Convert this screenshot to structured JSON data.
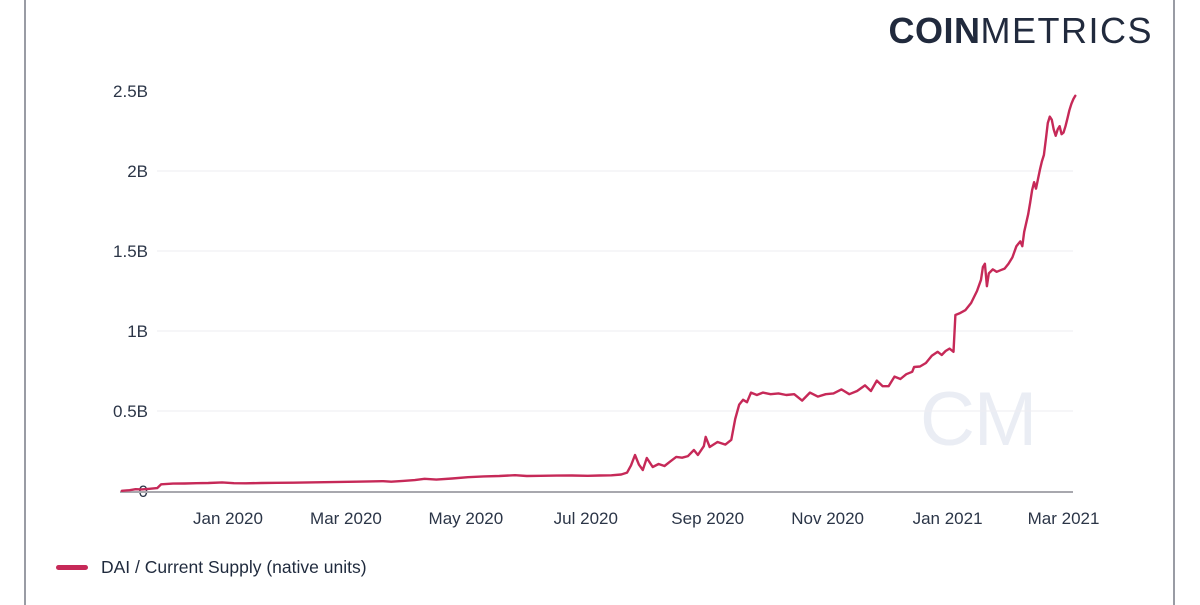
{
  "brand": {
    "logo_bold": "COIN",
    "logo_light": "METRICS",
    "watermark": "CM",
    "logo_color": "#212a3d",
    "watermark_color": "#eaedf4"
  },
  "legend": {
    "label": "DAI / Current Supply (native units)",
    "swatch_color": "#c62958"
  },
  "chart_data": {
    "type": "line",
    "title": "",
    "xlabel": "",
    "ylabel": "",
    "line_color": "#c62958",
    "grid_color": "#ededf2",
    "axis_color": "#a8a8ae",
    "tick_label_color": "#2b3547",
    "grid": "horizontal",
    "legend_position": "bottom-left",
    "ylim": [
      0,
      2.6
    ],
    "y_ticks": [
      {
        "value": 0,
        "label": "0",
        "gridline": false
      },
      {
        "value": 0.5,
        "label": "0.5B",
        "gridline": true
      },
      {
        "value": 1,
        "label": "1B",
        "gridline": true
      },
      {
        "value": 1.5,
        "label": "1.5B",
        "gridline": true
      },
      {
        "value": 2,
        "label": "2B",
        "gridline": true
      },
      {
        "value": 2.5,
        "label": "2.5B",
        "gridline": false
      }
    ],
    "x_ticks": [
      {
        "date": "2020-01-01",
        "label": "Jan 2020"
      },
      {
        "date": "2020-03-01",
        "label": "Mar 2020"
      },
      {
        "date": "2020-05-01",
        "label": "May 2020"
      },
      {
        "date": "2020-07-01",
        "label": "Jul 2020"
      },
      {
        "date": "2020-09-01",
        "label": "Sep 2020"
      },
      {
        "date": "2020-11-01",
        "label": "Nov 2020"
      },
      {
        "date": "2021-01-01",
        "label": "Jan 2021"
      },
      {
        "date": "2021-03-01",
        "label": "Mar 2021"
      }
    ],
    "series": [
      {
        "name": "DAI / Current Supply (native units)",
        "unit": "billions of native units",
        "points": [
          [
            "2019-11-08",
            0.001
          ],
          [
            "2019-11-12",
            0.005
          ],
          [
            "2019-11-15",
            0.011
          ],
          [
            "2019-11-18",
            0.01
          ],
          [
            "2019-11-22",
            0.014
          ],
          [
            "2019-11-26",
            0.018
          ],
          [
            "2019-11-28",
            0.042
          ],
          [
            "2019-12-04",
            0.046
          ],
          [
            "2019-12-10",
            0.047
          ],
          [
            "2019-12-16",
            0.049
          ],
          [
            "2019-12-22",
            0.05
          ],
          [
            "2019-12-29",
            0.054
          ],
          [
            "2020-01-04",
            0.049
          ],
          [
            "2020-01-10",
            0.048
          ],
          [
            "2020-01-18",
            0.05
          ],
          [
            "2020-01-26",
            0.051
          ],
          [
            "2020-02-03",
            0.052
          ],
          [
            "2020-02-11",
            0.054
          ],
          [
            "2020-02-19",
            0.055
          ],
          [
            "2020-02-27",
            0.057
          ],
          [
            "2020-03-06",
            0.058
          ],
          [
            "2020-03-13",
            0.06
          ],
          [
            "2020-03-20",
            0.061
          ],
          [
            "2020-03-24",
            0.058
          ],
          [
            "2020-03-30",
            0.063
          ],
          [
            "2020-04-05",
            0.068
          ],
          [
            "2020-04-10",
            0.076
          ],
          [
            "2020-04-16",
            0.071
          ],
          [
            "2020-04-24",
            0.078
          ],
          [
            "2020-05-02",
            0.086
          ],
          [
            "2020-05-10",
            0.091
          ],
          [
            "2020-05-18",
            0.094
          ],
          [
            "2020-05-26",
            0.099
          ],
          [
            "2020-06-01",
            0.094
          ],
          [
            "2020-06-08",
            0.095
          ],
          [
            "2020-06-16",
            0.096
          ],
          [
            "2020-06-24",
            0.097
          ],
          [
            "2020-07-02",
            0.095
          ],
          [
            "2020-07-08",
            0.097
          ],
          [
            "2020-07-14",
            0.098
          ],
          [
            "2020-07-19",
            0.103
          ],
          [
            "2020-07-22",
            0.115
          ],
          [
            "2020-07-24",
            0.16
          ],
          [
            "2020-07-26",
            0.225
          ],
          [
            "2020-07-28",
            0.165
          ],
          [
            "2020-07-30",
            0.131
          ],
          [
            "2020-08-01",
            0.206
          ],
          [
            "2020-08-04",
            0.15
          ],
          [
            "2020-08-07",
            0.169
          ],
          [
            "2020-08-10",
            0.156
          ],
          [
            "2020-08-13",
            0.185
          ],
          [
            "2020-08-16",
            0.213
          ],
          [
            "2020-08-19",
            0.208
          ],
          [
            "2020-08-22",
            0.218
          ],
          [
            "2020-08-25",
            0.256
          ],
          [
            "2020-08-27",
            0.225
          ],
          [
            "2020-08-30",
            0.28
          ],
          [
            "2020-08-31",
            0.338
          ],
          [
            "2020-09-02",
            0.275
          ],
          [
            "2020-09-06",
            0.306
          ],
          [
            "2020-09-10",
            0.29
          ],
          [
            "2020-09-13",
            0.32
          ],
          [
            "2020-09-15",
            0.45
          ],
          [
            "2020-09-17",
            0.54
          ],
          [
            "2020-09-19",
            0.57
          ],
          [
            "2020-09-21",
            0.555
          ],
          [
            "2020-09-23",
            0.615
          ],
          [
            "2020-09-26",
            0.6
          ],
          [
            "2020-09-29",
            0.615
          ],
          [
            "2020-10-03",
            0.605
          ],
          [
            "2020-10-07",
            0.61
          ],
          [
            "2020-10-11",
            0.6
          ],
          [
            "2020-10-15",
            0.605
          ],
          [
            "2020-10-19",
            0.565
          ],
          [
            "2020-10-23",
            0.615
          ],
          [
            "2020-10-27",
            0.59
          ],
          [
            "2020-10-31",
            0.605
          ],
          [
            "2020-11-04",
            0.61
          ],
          [
            "2020-11-08",
            0.635
          ],
          [
            "2020-11-12",
            0.605
          ],
          [
            "2020-11-16",
            0.625
          ],
          [
            "2020-11-20",
            0.66
          ],
          [
            "2020-11-23",
            0.625
          ],
          [
            "2020-11-26",
            0.69
          ],
          [
            "2020-11-29",
            0.655
          ],
          [
            "2020-12-02",
            0.655
          ],
          [
            "2020-12-05",
            0.715
          ],
          [
            "2020-12-08",
            0.7
          ],
          [
            "2020-12-11",
            0.73
          ],
          [
            "2020-12-14",
            0.745
          ],
          [
            "2020-12-15",
            0.775
          ],
          [
            "2020-12-18",
            0.778
          ],
          [
            "2020-12-21",
            0.8
          ],
          [
            "2020-12-24",
            0.845
          ],
          [
            "2020-12-27",
            0.87
          ],
          [
            "2020-12-29",
            0.85
          ],
          [
            "2020-12-31",
            0.875
          ],
          [
            "2021-01-02",
            0.89
          ],
          [
            "2021-01-04",
            0.87
          ],
          [
            "2021-01-05",
            1.1
          ],
          [
            "2021-01-07",
            1.11
          ],
          [
            "2021-01-10",
            1.13
          ],
          [
            "2021-01-13",
            1.175
          ],
          [
            "2021-01-16",
            1.25
          ],
          [
            "2021-01-18",
            1.32
          ],
          [
            "2021-01-19",
            1.4
          ],
          [
            "2021-01-20",
            1.42
          ],
          [
            "2021-01-21",
            1.28
          ],
          [
            "2021-01-22",
            1.36
          ],
          [
            "2021-01-24",
            1.385
          ],
          [
            "2021-01-26",
            1.37
          ],
          [
            "2021-01-28",
            1.38
          ],
          [
            "2021-01-30",
            1.39
          ],
          [
            "2021-02-01",
            1.42
          ],
          [
            "2021-02-03",
            1.46
          ],
          [
            "2021-02-05",
            1.53
          ],
          [
            "2021-02-07",
            1.56
          ],
          [
            "2021-02-08",
            1.53
          ],
          [
            "2021-02-09",
            1.62
          ],
          [
            "2021-02-11",
            1.73
          ],
          [
            "2021-02-12",
            1.8
          ],
          [
            "2021-02-13",
            1.88
          ],
          [
            "2021-02-14",
            1.93
          ],
          [
            "2021-02-15",
            1.89
          ],
          [
            "2021-02-16",
            1.95
          ],
          [
            "2021-02-17",
            2.01
          ],
          [
            "2021-02-18",
            2.06
          ],
          [
            "2021-02-19",
            2.1
          ],
          [
            "2021-02-20",
            2.2
          ],
          [
            "2021-02-21",
            2.3
          ],
          [
            "2021-02-22",
            2.34
          ],
          [
            "2021-02-23",
            2.32
          ],
          [
            "2021-02-24",
            2.26
          ],
          [
            "2021-02-25",
            2.22
          ],
          [
            "2021-02-26",
            2.26
          ],
          [
            "2021-02-27",
            2.28
          ],
          [
            "2021-02-28",
            2.23
          ],
          [
            "2021-03-01",
            2.24
          ],
          [
            "2021-03-02",
            2.28
          ],
          [
            "2021-03-03",
            2.33
          ],
          [
            "2021-03-04",
            2.38
          ],
          [
            "2021-03-05",
            2.42
          ],
          [
            "2021-03-06",
            2.45
          ],
          [
            "2021-03-07",
            2.47
          ]
        ]
      }
    ]
  }
}
